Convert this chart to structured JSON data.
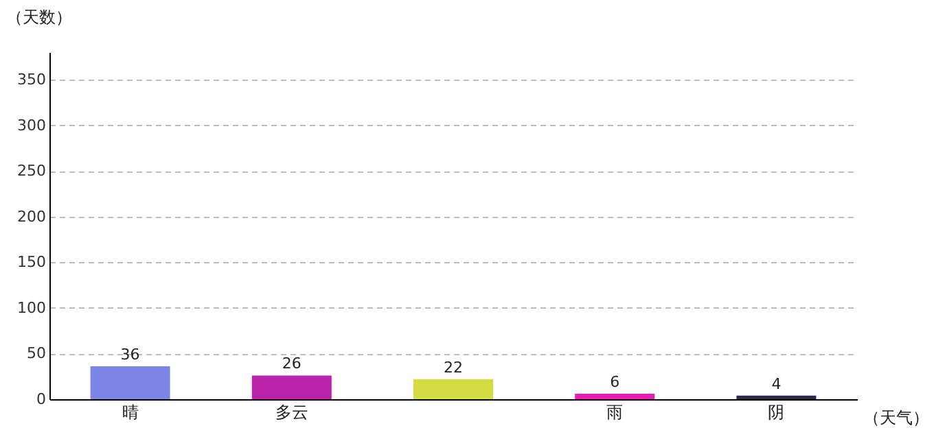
{
  "chart_data": {
    "type": "bar",
    "xlabel": "（天气）",
    "ylabel": "（天数）",
    "categories": [
      "晴",
      "多云",
      null,
      "雨",
      "阴"
    ],
    "values": [
      36,
      26,
      22,
      6,
      4
    ],
    "colors": [
      "#7b86e4",
      "#bb22aa",
      "#d4dc44",
      "#e61cb4",
      "#2a2a4a"
    ],
    "ylim": [
      0,
      380
    ],
    "yticks": [
      0,
      50,
      100,
      150,
      200,
      250,
      300,
      350
    ],
    "grid": "y",
    "data_labels": true
  }
}
